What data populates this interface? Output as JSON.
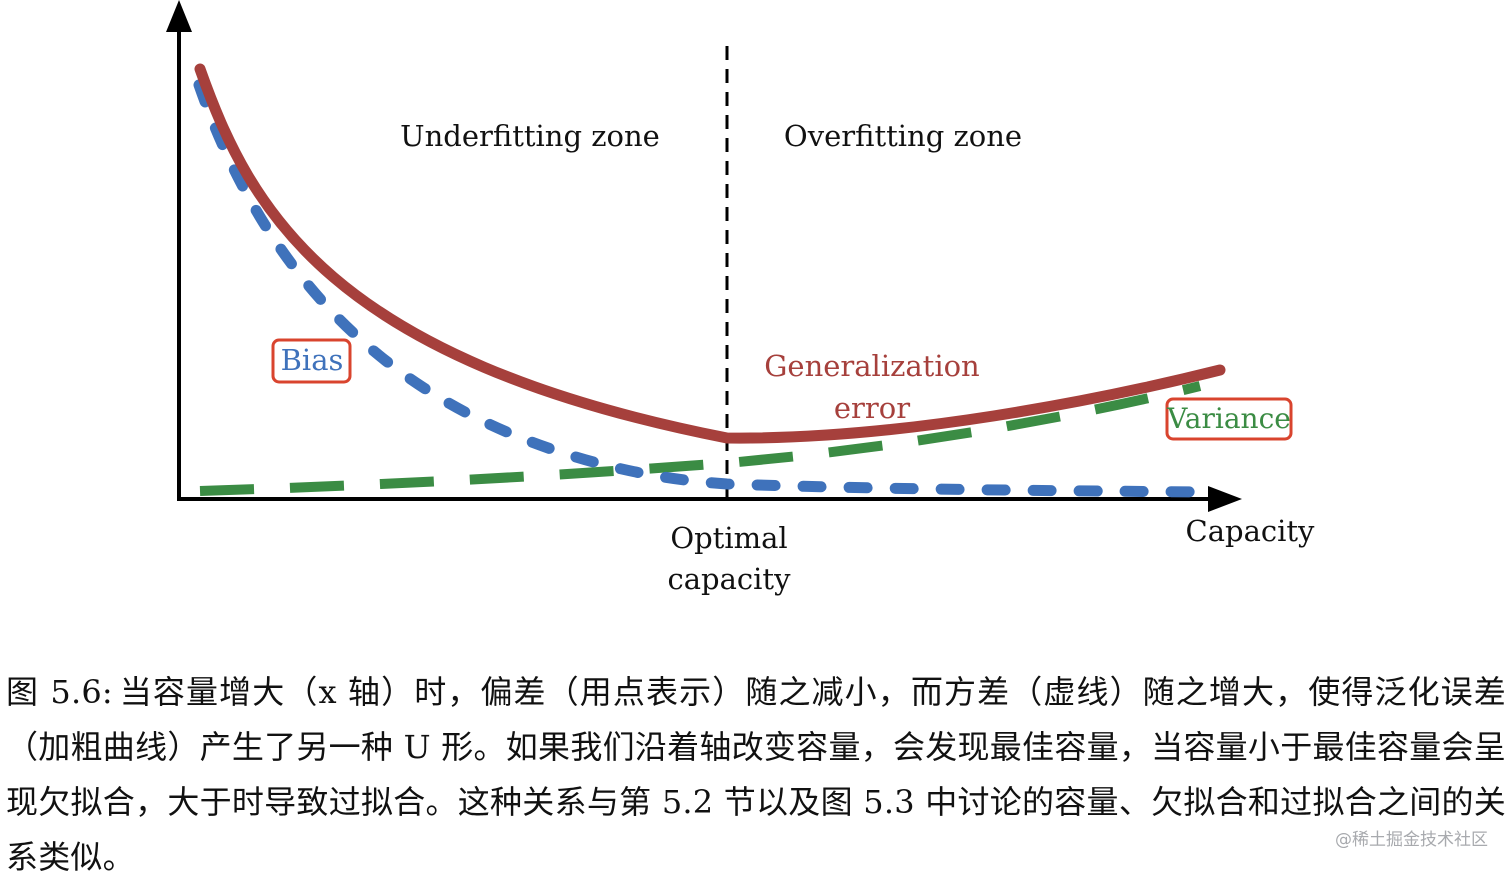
{
  "diagram": {
    "zone_left": "Underfitting zone",
    "zone_right": "Overfitting zone",
    "optimal_line1": "Optimal",
    "optimal_line2": "capacity",
    "x_axis_label": "Capacity",
    "bias_label": "Bias",
    "variance_label": "Variance",
    "generalization_line1": "Generalization",
    "generalization_line2": "error",
    "colors": {
      "generalization": "#a6403c",
      "bias": "#3f72bb",
      "variance": "#3b8c44",
      "box_border": "#d9442e",
      "axis": "#000000"
    }
  },
  "caption": {
    "label": "图 5.6:",
    "text": "当容量增大（x 轴）时，偏差（用点表示）随之减小，而方差（虚线）随之增大，使得泛化误差（加粗曲线）产生了另一种 U 形。如果我们沿着轴改变容量，会发现最佳容量，当容量小于最佳容量会呈现欠拟合，大于时导致过拟合。这种关系与第 5.2 节以及图 5.3 中讨论的容量、欠拟合和过拟合之间的关系类似。"
  },
  "watermark": "@稀土掘金技术社区"
}
